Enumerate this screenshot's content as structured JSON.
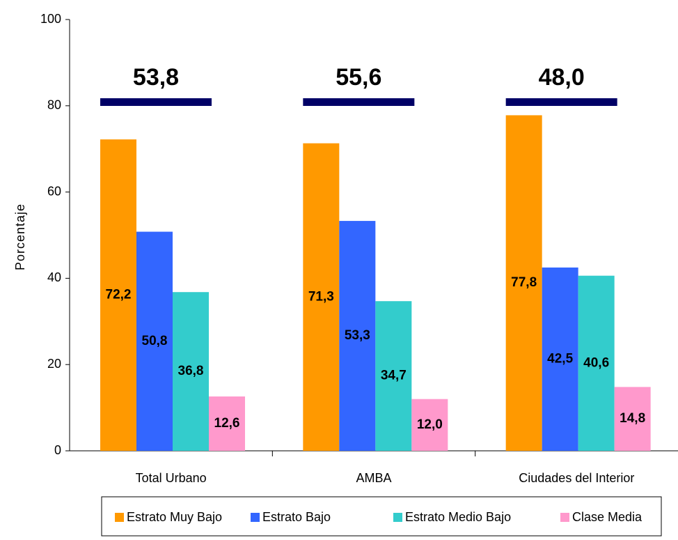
{
  "chart_data": {
    "type": "bar",
    "y_label": "Porcentaje",
    "categories": [
      "Total Urbano",
      "AMBA",
      "Ciudades del Interior"
    ],
    "series": [
      {
        "name": "Estrato Muy Bajo",
        "color": "#ff9900",
        "values": [
          72.2,
          71.3,
          77.8
        ],
        "value_labels": [
          "72,2",
          "71,3",
          "77,8"
        ]
      },
      {
        "name": "Estrato Bajo",
        "color": "#3366ff",
        "values": [
          50.8,
          53.3,
          42.5
        ],
        "value_labels": [
          "50,8",
          "53,3",
          "42,5"
        ]
      },
      {
        "name": "Estrato Medio Bajo",
        "color": "#33cccc",
        "values": [
          36.8,
          34.7,
          40.6
        ],
        "value_labels": [
          "36,8",
          "34,7",
          "40,6"
        ]
      },
      {
        "name": "Clase Media",
        "color": "#ff99cc",
        "values": [
          12.6,
          12.0,
          14.8
        ],
        "value_labels": [
          "12,6",
          "12,0",
          "14,8"
        ]
      }
    ],
    "totals": {
      "color": "#000066",
      "values": [
        53.8,
        55.6,
        48.0
      ],
      "value_labels": [
        "53,8",
        "55,6",
        "48,0"
      ]
    },
    "ylim": [
      0,
      100
    ],
    "yticks": [
      0,
      20,
      40,
      60,
      80,
      100
    ],
    "grid": false
  }
}
